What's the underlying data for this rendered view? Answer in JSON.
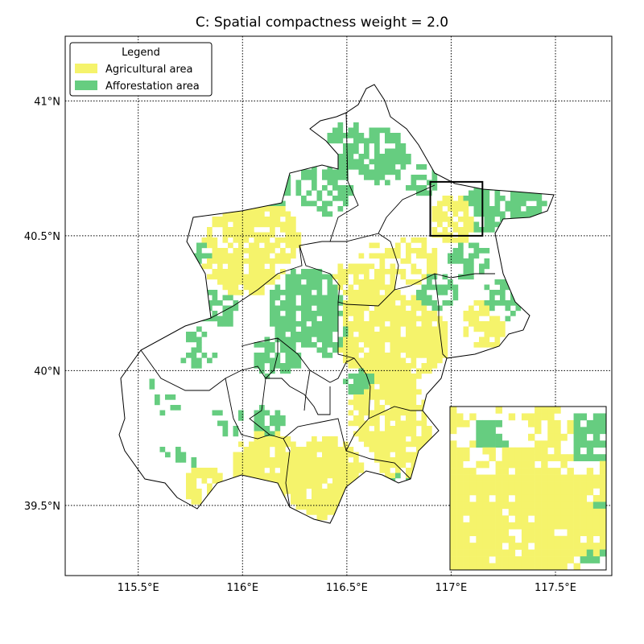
{
  "title": "C: Spatial compactness weight = 2.0",
  "colors": {
    "agricultural": "#f5f36b",
    "afforestation": "#66cd80",
    "boundary": "#000000",
    "grid": "#000000",
    "background": "#ffffff"
  },
  "legend": {
    "title": "Legend",
    "items": [
      {
        "label": "Agricultural area",
        "color": "#f5f36b"
      },
      {
        "label": "Afforestation area",
        "color": "#66cd80"
      }
    ]
  },
  "map_extent": {
    "lon_min": 115.15,
    "lon_max": 117.77,
    "lat_min": 39.24,
    "lat_max": 41.24
  },
  "x_ticks": [
    {
      "value": 115.5,
      "label": "115.5°E"
    },
    {
      "value": 116.0,
      "label": "116°E"
    },
    {
      "value": 116.5,
      "label": "116.5°E"
    },
    {
      "value": 117.0,
      "label": "117°E"
    },
    {
      "value": 117.5,
      "label": "117.5°E"
    }
  ],
  "y_ticks": [
    {
      "value": 41.0,
      "label": "41°N"
    },
    {
      "value": 40.5,
      "label": "40.5°N"
    },
    {
      "value": 40.0,
      "label": "40°N"
    },
    {
      "value": 39.5,
      "label": "39.5°N"
    }
  ],
  "zoom_box": {
    "lon_min": 116.9,
    "lon_max": 117.15,
    "lat_min": 40.5,
    "lat_max": 40.7
  }
}
